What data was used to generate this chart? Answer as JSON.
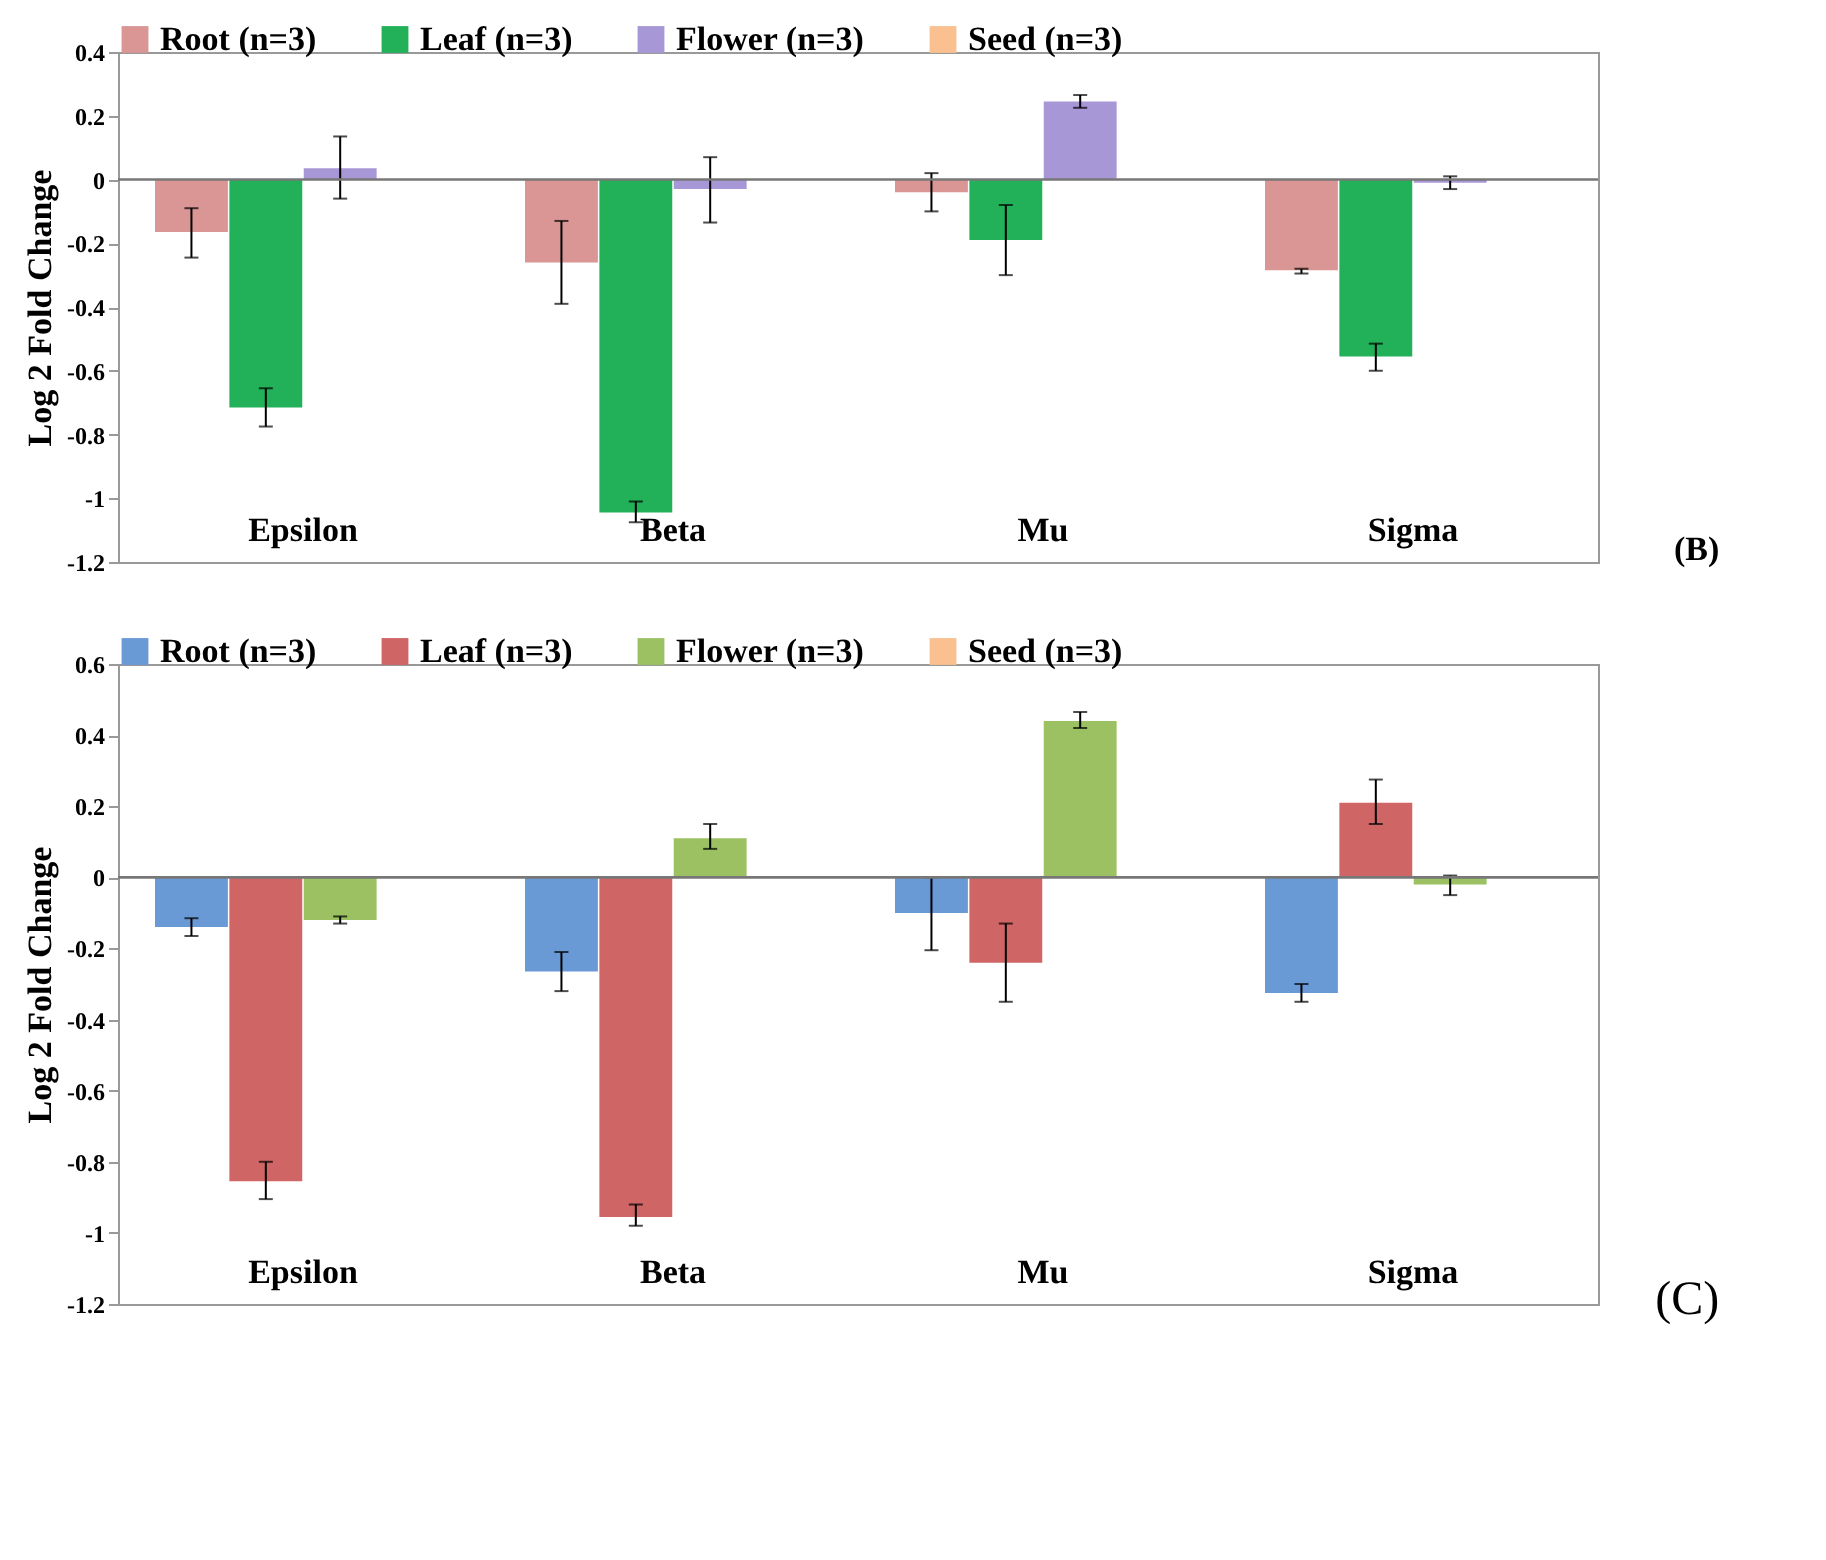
{
  "chart_data": [
    {
      "type": "bar",
      "ylabel": "Log 2 Fold Change",
      "categories": [
        "Epsilon",
        "Beta",
        "Mu",
        "Sigma"
      ],
      "ylim": [
        -1.2,
        0.4
      ],
      "yticks": [
        -1.2,
        -1,
        -0.8,
        -0.6,
        -0.4,
        -0.2,
        0,
        0.2,
        0.4
      ],
      "legend": "top",
      "annotations": [
        "(B)"
      ],
      "ref_lines": [
        {
          "axis": "y",
          "value": 0
        }
      ],
      "series": [
        {
          "name": "Root (n=3)",
          "color": "#d99694",
          "values": [
            -0.165,
            -0.26,
            -0.04,
            -0.285
          ],
          "errors": [
            [
              -0.245,
              -0.09
            ],
            [
              -0.39,
              -0.13
            ],
            [
              -0.1,
              0.02
            ],
            [
              -0.295,
              -0.28
            ]
          ]
        },
        {
          "name": "Leaf (n=3)",
          "color": "#22b159",
          "values": [
            -0.715,
            -1.045,
            -0.19,
            -0.555
          ],
          "errors": [
            [
              -0.775,
              -0.655
            ],
            [
              -1.075,
              -1.01
            ],
            [
              -0.3,
              -0.08
            ],
            [
              -0.6,
              -0.515
            ]
          ]
        },
        {
          "name": "Flower (n=3)",
          "color": "#a797d6",
          "values": [
            0.035,
            -0.03,
            0.245,
            -0.01
          ],
          "errors": [
            [
              -0.06,
              0.135
            ],
            [
              -0.135,
              0.07
            ],
            [
              0.225,
              0.265
            ],
            [
              -0.03,
              0.01
            ]
          ]
        },
        {
          "name": "Seed (n=3)",
          "color": "#fac090",
          "values": [
            null,
            null,
            null,
            null
          ]
        }
      ]
    },
    {
      "type": "bar",
      "ylabel": "Log 2 Fold Change",
      "categories": [
        "Epsilon",
        "Beta",
        "Mu",
        "Sigma"
      ],
      "ylim": [
        -1.2,
        0.6
      ],
      "yticks": [
        -1.2,
        -1,
        -0.8,
        -0.6,
        -0.4,
        -0.2,
        0,
        0.2,
        0.4,
        0.6
      ],
      "legend": "top",
      "annotations": [
        "(C)"
      ],
      "ref_lines": [
        {
          "axis": "y",
          "value": 0
        }
      ],
      "series": [
        {
          "name": "Root (n=3)",
          "color": "#6a9ad6",
          "values": [
            -0.14,
            -0.265,
            -0.1,
            -0.325
          ],
          "errors": [
            [
              -0.165,
              -0.115
            ],
            [
              -0.32,
              -0.21
            ],
            [
              -0.205,
              0
            ],
            [
              -0.35,
              -0.3
            ]
          ]
        },
        {
          "name": "Leaf (n=3)",
          "color": "#d06565",
          "values": [
            -0.855,
            -0.955,
            -0.24,
            0.21
          ],
          "errors": [
            [
              -0.905,
              -0.8
            ],
            [
              -0.98,
              -0.92
            ],
            [
              -0.35,
              -0.13
            ],
            [
              0.15,
              0.275
            ]
          ]
        },
        {
          "name": "Flower (n=3)",
          "color": "#9bc163",
          "values": [
            -0.12,
            0.11,
            0.44,
            -0.02
          ],
          "errors": [
            [
              -0.13,
              -0.11
            ],
            [
              0.08,
              0.15
            ],
            [
              0.42,
              0.465
            ],
            [
              -0.05,
              0.005
            ]
          ]
        },
        {
          "name": "Seed (n=3)",
          "color": "#fac090",
          "values": [
            null,
            null,
            null,
            null
          ]
        }
      ]
    }
  ]
}
